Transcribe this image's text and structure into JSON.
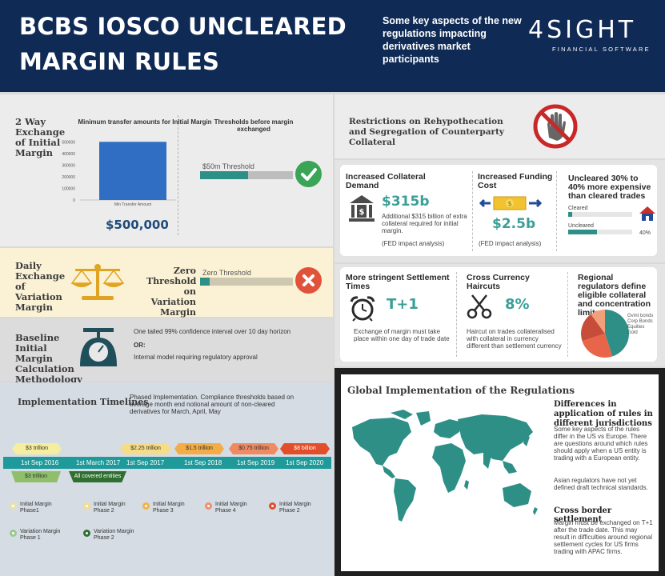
{
  "header": {
    "title_line1": "BCBS IOSCO UNCLEARED",
    "title_line2": "MARGIN RULES",
    "subtitle": "Some key aspects of the new regulations impacting derivatives market participants",
    "logo_main": "4SIGHT",
    "logo_sub": "FINANCIAL SOFTWARE"
  },
  "two_way": {
    "label": "2 Way Exchange of Initial Margin",
    "chart_title": "Minimum transfer amounts for Initial Margin",
    "amount": "$500,000",
    "thresholds_title": "Thresholds before margin exchanged",
    "threshold_label": "$50m Threshold",
    "check_icon": "check-icon"
  },
  "chart_data": {
    "type": "bar",
    "title": "Minimum transfer amounts for Initial Margin",
    "categories": [
      "Min Transfer Amount"
    ],
    "values": [
      500000
    ],
    "yticks": [
      "500000",
      "400000",
      "300000",
      "200000",
      "100000",
      "0"
    ],
    "ylim": [
      0,
      550000
    ],
    "color": "#2f6ec2"
  },
  "daily": {
    "label": "Daily Exchange of Variation Margin",
    "zero_label": "Zero Threshold on Variation Margin",
    "bar_label": "Zero Threshold",
    "cross_icon": "cross-icon"
  },
  "baseline": {
    "label": "Baseline Initial Margin Calculation Methodology",
    "line1": "One tailed 99% confidence interval over 10 day horizon",
    "or": "OR:",
    "line2": "Internal model requiring regulatory approval"
  },
  "timeline": {
    "title": "Implementation Timelines",
    "description": "Phased Implementation. Compliance thresholds based on average month end notional amount of non-cleared derivatives for March, April, May",
    "dates": [
      "1st Sep 2016",
      "1st March 2017",
      "1st Sep 2017",
      "1st Sep 2018",
      "1st Sep 2019",
      "1st Sep 2020"
    ],
    "top_tags": [
      "$3 trillion",
      "$2.25 trillion",
      "$1.5 trillion",
      "$0.75 trillion",
      "$8 billion"
    ],
    "bottom_tags": [
      "$3 trillion",
      "All covered entities"
    ],
    "legend": [
      {
        "label": "Initial Margin Phase1",
        "color": "#e8e3a8"
      },
      {
        "label": "Initial Margin Phase 2",
        "color": "#f2dd8f"
      },
      {
        "label": "Initial Margin Phase 3",
        "color": "#f3b14a"
      },
      {
        "label": "Initial Margin Phase 4",
        "color": "#f0906b"
      },
      {
        "label": "Initial Margin Phase 2",
        "color": "#e24e2a"
      },
      {
        "label": "Variation Margin Phase 1",
        "color": "#9bc88f"
      },
      {
        "label": "Variation Margin Phase 2",
        "color": "#2f6f2f"
      }
    ],
    "colors": {
      "bar": "#1f9a9a",
      "tag1": "#f5ee9e",
      "tag2": "#f5dc86",
      "tag3": "#f4ad46",
      "tag4": "#f08a62",
      "tag5": "#e24e2a",
      "tag_b1": "#8fbf6a",
      "tag_b2": "#2f6f2f"
    }
  },
  "rehyp": {
    "title": "Restrictions on Rehypothecation and Segregation of Counterparty Collateral",
    "icon": "stop-hand-icon"
  },
  "cards1": {
    "collateral": {
      "title": "Increased Collateral Demand",
      "value": "$315b",
      "text": "Additional $315 billion of extra collateral required for initial margin.",
      "note": "(FED impact analysis)",
      "icon": "bank-icon"
    },
    "funding": {
      "title": "Increased Funding Cost",
      "value": "$2.5b",
      "note": "(FED impact analysis)",
      "icon": "money-exchange-icon"
    },
    "uncleared": {
      "title": "Uncleared 30% to 40% more expensive than cleared trades",
      "cleared_label": "Cleared",
      "uncleared_label": "Uncleared",
      "pct": "40%",
      "icon": "house-icon"
    }
  },
  "cards2": {
    "settlement": {
      "title": "More stringent Settlement Times",
      "value": "T+1",
      "text": "Exchange of margin must take place within one day of trade date",
      "icon": "alarm-clock-icon"
    },
    "haircuts": {
      "title": "Cross Currency Haircuts",
      "value": "8%",
      "text": "Haircut on trades collateralised with collateral in currency different than settlement currency",
      "icon": "scissors-icon"
    },
    "regional": {
      "title": "Regional regulators define eligible collateral and concentration limits",
      "legend": [
        "Gvmt bonds",
        "Corp Bonds",
        "Equities",
        "Gold"
      ],
      "pie": [
        {
          "name": "Gvmt bonds",
          "value": 45,
          "color": "#2e8f86"
        },
        {
          "name": "Corp Bonds",
          "value": 25,
          "color": "#e8654a"
        },
        {
          "name": "Equities",
          "value": 20,
          "color": "#c84c3a"
        },
        {
          "name": "Gold",
          "value": 10,
          "color": "#f2a07a"
        }
      ]
    }
  },
  "global": {
    "title": "Global Implementation of the Regulations",
    "h1": "Differences in application of rules in different jurisdictions",
    "p1": "Some key aspects of the rules differ in the US vs Europe. There are questions around which rules should apply when a US entity is trading with a European entity.",
    "p2": "Asian regulators have not yet defined draft technical standards.",
    "h2": "Cross border settlement",
    "p3": "Margin must be exchanged on T+1 after the trade date. This may result in difficulties around regional settlement cycles for US firms trading with APAC firms."
  }
}
